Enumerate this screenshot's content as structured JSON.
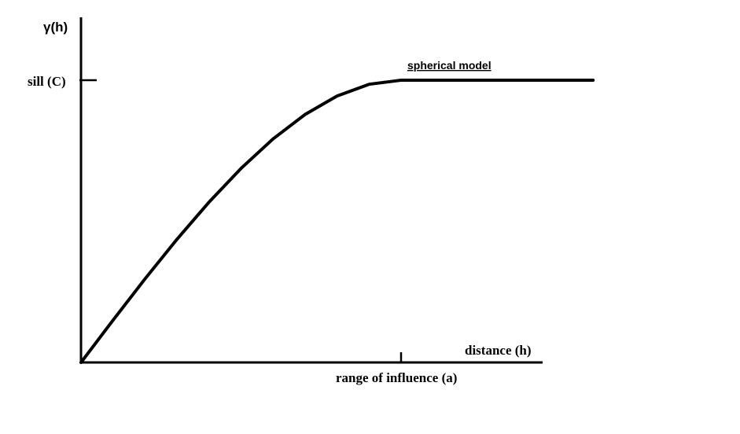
{
  "chart_data": {
    "type": "line",
    "title": "",
    "ylabel": "γ(h)",
    "xlabel": "distance (h)",
    "series": [
      {
        "name": "spherical model",
        "x": [
          0,
          0.1,
          0.2,
          0.3,
          0.4,
          0.5,
          0.6,
          0.7,
          0.8,
          0.9,
          1.0,
          1.2,
          1.4,
          1.6
        ],
        "y": [
          0,
          0.1495,
          0.296,
          0.4365,
          0.568,
          0.6875,
          0.792,
          0.8785,
          0.944,
          0.9855,
          1.0,
          1.0,
          1.0,
          1.0
        ]
      }
    ],
    "annotations": {
      "sill_label": "sill (C)",
      "sill_value": 1.0,
      "range_label": "range of influence (a)",
      "range_value": 1.0
    },
    "xlim": [
      0,
      1.45
    ],
    "ylim": [
      0,
      1.2
    ],
    "grid": false,
    "legend": "none",
    "colors": {
      "line": "#000000",
      "axis": "#000000"
    }
  }
}
